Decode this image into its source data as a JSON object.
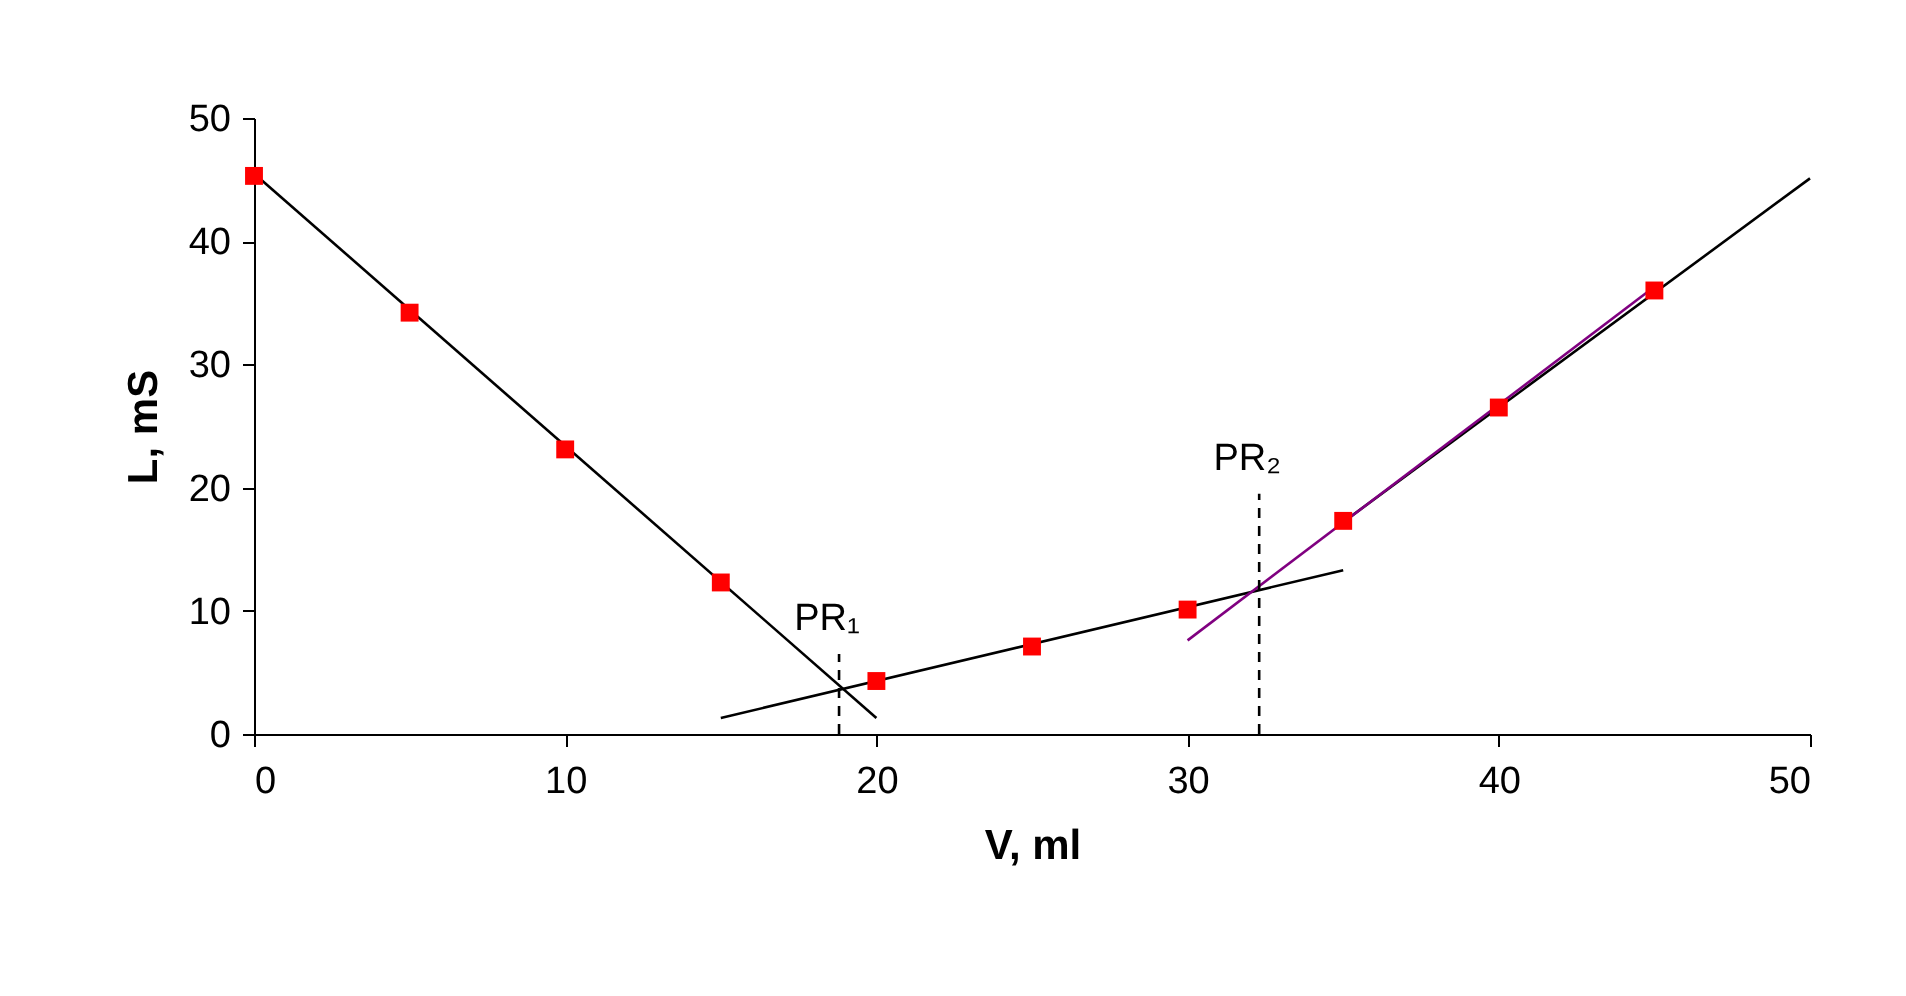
{
  "chart_data": {
    "type": "scatter",
    "xlabel": "V,  ml",
    "ylabel": "L, mS",
    "xlim": [
      0,
      50
    ],
    "ylim": [
      0,
      50
    ],
    "xticks": [
      0,
      10,
      20,
      30,
      40,
      50
    ],
    "yticks": [
      0,
      10,
      20,
      30,
      40,
      50
    ],
    "grid": false,
    "series": [
      {
        "type": "line",
        "color": "#000000",
        "line_style": "solid",
        "marker": "none",
        "x": [
          0,
          20
        ],
        "values": [
          45.5,
          1.3
        ]
      },
      {
        "type": "line",
        "color": "#000000",
        "line_style": "solid",
        "marker": "none",
        "x": [
          15,
          35
        ],
        "values": [
          1.3,
          13.3
        ]
      },
      {
        "type": "line",
        "color": "#000000",
        "line_style": "solid",
        "marker": "none",
        "x": [
          35,
          50
        ],
        "values": [
          17.2,
          45.1
        ]
      },
      {
        "type": "line",
        "color": "#800080",
        "line_style": "solid",
        "marker": "none",
        "x": [
          30,
          45
        ],
        "values": [
          7.6,
          36.3
        ]
      },
      {
        "type": "line",
        "color": "#000000",
        "line_style": "dashed",
        "marker": "none",
        "x": [
          18.8,
          18.8
        ],
        "values": [
          0,
          6.5
        ]
      },
      {
        "type": "line",
        "color": "#000000",
        "line_style": "dashed",
        "marker": "none",
        "x": [
          32.3,
          32.3
        ],
        "values": [
          0,
          19.5
        ]
      },
      {
        "color": "#ff0000",
        "marker": "square",
        "x": [
          0,
          5,
          10,
          15,
          20,
          25,
          30,
          35,
          40,
          45
        ],
        "values": [
          45.3,
          34.2,
          23.1,
          12.3,
          4.3,
          7.1,
          10.1,
          17.3,
          26.5,
          36.0
        ]
      }
    ],
    "annotations": [
      "PR₁",
      "PR₂"
    ]
  }
}
